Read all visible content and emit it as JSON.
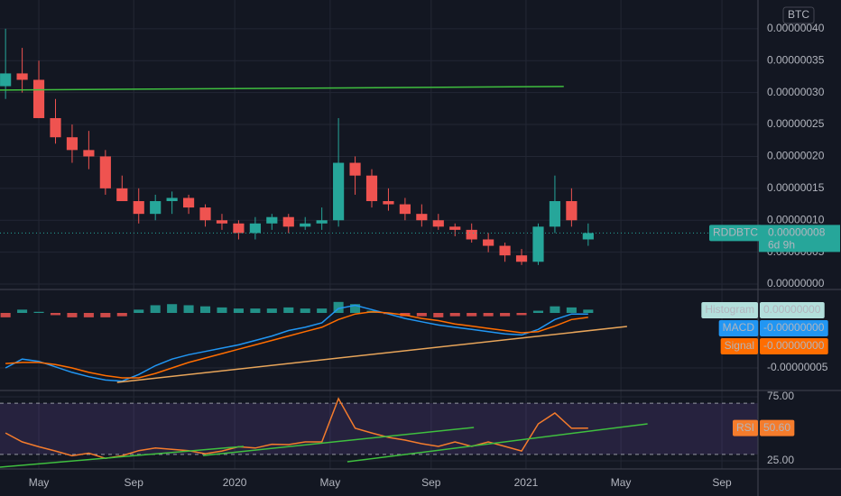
{
  "chart_data": [
    {
      "type": "candlestick",
      "symbol": "RDDBTC",
      "currency": "BTC",
      "last_label": "0.00000008",
      "countdown": "6d 9h",
      "up_color": "#26a69a",
      "down_color": "#ef5350",
      "x": [
        1,
        4,
        7,
        10,
        13,
        16,
        19,
        22,
        25,
        28,
        31,
        34,
        37,
        40,
        43,
        46,
        49,
        52,
        55,
        58,
        61,
        64,
        67,
        70,
        73,
        76,
        79,
        82,
        85,
        88,
        91,
        94,
        97,
        100,
        103,
        106
      ],
      "open": [
        3.1e-07,
        3.3e-07,
        3.2e-07,
        2.6e-07,
        2.3e-07,
        2.1e-07,
        2e-07,
        1.5e-07,
        1.3e-07,
        1.1e-07,
        1.3e-07,
        1.35e-07,
        1.2e-07,
        1e-07,
        9.5e-08,
        8e-08,
        9.5e-08,
        1.05e-07,
        9e-08,
        9.5e-08,
        1e-07,
        1.9e-07,
        1.7e-07,
        1.3e-07,
        1.25e-07,
        1.1e-07,
        1e-07,
        9e-08,
        8.5e-08,
        7e-08,
        6e-08,
        4.5e-08,
        3.5e-08,
        9e-08,
        1.3e-07,
        7e-08
      ],
      "high": [
        4e-07,
        3.7e-07,
        3.5e-07,
        2.9e-07,
        2.5e-07,
        2.4e-07,
        2.1e-07,
        1.7e-07,
        1.5e-07,
        1.4e-07,
        1.45e-07,
        1.4e-07,
        1.25e-07,
        1.1e-07,
        1e-07,
        1.05e-07,
        1.1e-07,
        1.1e-07,
        1.05e-07,
        1.2e-07,
        2.6e-07,
        2e-07,
        1.8e-07,
        1.5e-07,
        1.35e-07,
        1.25e-07,
        1.1e-07,
        9.5e-08,
        9.5e-08,
        8e-08,
        6.5e-08,
        5.5e-08,
        9.5e-08,
        1.7e-07,
        1.5e-07,
        9.5e-08
      ],
      "low": [
        2.9e-07,
        3e-07,
        2.6e-07,
        2.2e-07,
        1.9e-07,
        1.8e-07,
        1.4e-07,
        1.3e-07,
        9.5e-08,
        1e-07,
        1.1e-07,
        1.1e-07,
        9e-08,
        8.5e-08,
        7e-08,
        7e-08,
        8.5e-08,
        8e-08,
        8.5e-08,
        8.5e-08,
        9e-08,
        1.4e-07,
        1.2e-07,
        1.15e-07,
        1e-07,
        9e-08,
        8.5e-08,
        7.5e-08,
        6.5e-08,
        5e-08,
        3.5e-08,
        3e-08,
        3e-08,
        8e-08,
        9e-08,
        6e-08
      ],
      "close": [
        3.3e-07,
        3.2e-07,
        2.6e-07,
        2.3e-07,
        2.1e-07,
        2e-07,
        1.5e-07,
        1.3e-07,
        1.1e-07,
        1.3e-07,
        1.35e-07,
        1.2e-07,
        1e-07,
        9.5e-08,
        8e-08,
        9.5e-08,
        1.05e-07,
        9e-08,
        9.5e-08,
        1e-07,
        1.9e-07,
        1.7e-07,
        1.3e-07,
        1.25e-07,
        1.1e-07,
        1e-07,
        9e-08,
        8.5e-08,
        7e-08,
        6e-08,
        4.5e-08,
        3.5e-08,
        9e-08,
        1.3e-07,
        1e-07,
        8e-08
      ],
      "xlim": [
        0,
        136.6
      ],
      "xticks": [
        {
          "value": 7,
          "label": "May"
        },
        {
          "value": 24.1,
          "label": "Sep"
        },
        {
          "value": 42.3,
          "label": "2020"
        },
        {
          "value": 59.5,
          "label": "May"
        },
        {
          "value": 77.7,
          "label": "Sep"
        },
        {
          "value": 94.8,
          "label": "2021"
        },
        {
          "value": 111.9,
          "label": "May"
        },
        {
          "value": 130.1,
          "label": "Sep"
        }
      ],
      "ylim": [
        -7e-09,
        4.45e-07
      ],
      "yticks": [
        {
          "value": 0,
          "label": "0.00000000"
        },
        {
          "value": 5e-08,
          "label": "0.00000005"
        },
        {
          "value": 1e-07,
          "label": "0.00000010"
        },
        {
          "value": 1.5e-07,
          "label": "0.00000015"
        },
        {
          "value": 2e-07,
          "label": "0.00000020"
        },
        {
          "value": 2.5e-07,
          "label": "0.00000025"
        },
        {
          "value": 3e-07,
          "label": "0.00000030"
        },
        {
          "value": 3.5e-07,
          "label": "0.00000035"
        },
        {
          "value": 4e-07,
          "label": "0.00000040"
        }
      ],
      "trend_lines": [
        {
          "x": [
            0,
            101.6
          ],
          "y": [
            3.04e-07,
            3.095e-07
          ],
          "color": "#3fbf3f"
        }
      ]
    },
    {
      "type": "macd",
      "x": [
        1,
        4,
        7,
        10,
        13,
        16,
        19,
        22,
        25,
        28,
        31,
        34,
        37,
        40,
        43,
        46,
        49,
        52,
        55,
        58,
        61,
        64,
        67,
        70,
        73,
        76,
        79,
        82,
        85,
        88,
        91,
        94,
        97,
        100,
        103,
        106
      ],
      "series": [
        {
          "name": "Histogram",
          "color": "#b2dfdb",
          "up_color": "#26a69a",
          "down_color": "#ef5350",
          "last_label": "0.00000000",
          "values": [
            -4e-09,
            3e-09,
            1e-09,
            -2e-09,
            -4e-09,
            -4e-09,
            -4e-09,
            -3e-09,
            3e-09,
            7e-09,
            8e-09,
            7e-09,
            6e-09,
            5e-09,
            4e-09,
            4e-09,
            4e-09,
            5e-09,
            4e-09,
            4e-09,
            1e-08,
            8e-09,
            2e-09,
            -1e-09,
            -3e-09,
            -3e-09,
            -4e-09,
            -3e-09,
            -3e-09,
            -3e-09,
            -3e-09,
            -2e-09,
            2e-09,
            6e-09,
            5e-09,
            3e-09
          ]
        },
        {
          "name": "MACD",
          "color": "#2196f3",
          "last_label": "-0.00000000",
          "values": [
            -5e-08,
            -4.2e-08,
            -4.4e-08,
            -4.9e-08,
            -5.4e-08,
            -5.8e-08,
            -6.1e-08,
            -6.2e-08,
            -5.6e-08,
            -4.8e-08,
            -4.2e-08,
            -3.8e-08,
            -3.5e-08,
            -3.2e-08,
            -2.9e-08,
            -2.5e-08,
            -2.1e-08,
            -1.6e-08,
            -1.3e-08,
            -9e-09,
            4e-09,
            7e-09,
            3e-09,
            -1e-09,
            -5e-09,
            -8e-09,
            -1.1e-08,
            -1.3e-08,
            -1.5e-08,
            -1.7e-08,
            -1.9e-08,
            -2e-08,
            -1.5e-08,
            -6e-09,
            -1e-09,
            -1e-09
          ]
        },
        {
          "name": "Signal",
          "color": "#ff6d00",
          "last_label": "-0.00000000",
          "values": [
            -4.6e-08,
            -4.5e-08,
            -4.5e-08,
            -4.7e-08,
            -5e-08,
            -5.4e-08,
            -5.7e-08,
            -5.9e-08,
            -5.9e-08,
            -5.5e-08,
            -5e-08,
            -4.5e-08,
            -4.1e-08,
            -3.7e-08,
            -3.3e-08,
            -2.9e-08,
            -2.5e-08,
            -2.1e-08,
            -1.7e-08,
            -1.3e-08,
            -6e-09,
            -1e-09,
            1e-09,
            0,
            -2e-09,
            -5e-09,
            -7e-09,
            -1e-08,
            -1.2e-08,
            -1.4e-08,
            -1.6e-08,
            -1.8e-08,
            -1.7e-08,
            -1.2e-08,
            -6e-09,
            -4e-09
          ]
        }
      ],
      "ylim": [
        -6.97e-08,
        2.05e-08
      ],
      "yticks": [
        {
          "value": -5e-08,
          "label": "-0.00000005"
        }
      ],
      "trend_lines": [
        {
          "x": [
            21.1,
            113
          ],
          "y": [
            -6.31e-08,
            -1.23e-08
          ],
          "color": "#e8a55a"
        }
      ]
    },
    {
      "type": "line",
      "x": [
        1,
        4,
        7,
        10,
        13,
        16,
        19,
        22,
        25,
        28,
        31,
        34,
        37,
        40,
        43,
        46,
        49,
        52,
        55,
        58,
        61,
        64,
        67,
        70,
        73,
        76,
        79,
        82,
        85,
        88,
        91,
        94,
        97,
        100,
        103,
        106
      ],
      "series": [
        {
          "name": "RSI",
          "color": "#f57c2c",
          "last_label": "50.60",
          "values": [
            46.8,
            39.8,
            36,
            32.7,
            29,
            31,
            27,
            29,
            33,
            35,
            34,
            33,
            30.6,
            32.7,
            36,
            35,
            38,
            37.7,
            39.8,
            39.8,
            73.6,
            50.4,
            46.8,
            43.3,
            41.2,
            38.4,
            36.3,
            39.8,
            36.3,
            39.8,
            36.3,
            32.7,
            53.9,
            62.3,
            50.4,
            50.6
          ]
        }
      ],
      "band": [
        30,
        70
      ],
      "band_color": "#7e57c2",
      "ylim": [
        18.7,
        79.2
      ],
      "yticks": [
        {
          "value": 25,
          "label": "25.00"
        },
        {
          "value": 75,
          "label": "75.00"
        }
      ],
      "trend_lines": [
        {
          "x": [
            0,
            43.9
          ],
          "y": [
            20.1,
            36.3
          ],
          "color": "#3fbf3f"
        },
        {
          "x": [
            36.6,
            85.4
          ],
          "y": [
            29.2,
            51.1
          ],
          "color": "#3fbf3f"
        },
        {
          "x": [
            62.6,
            116.7
          ],
          "y": [
            24.3,
            53.9
          ],
          "color": "#3fbf3f"
        }
      ]
    }
  ]
}
